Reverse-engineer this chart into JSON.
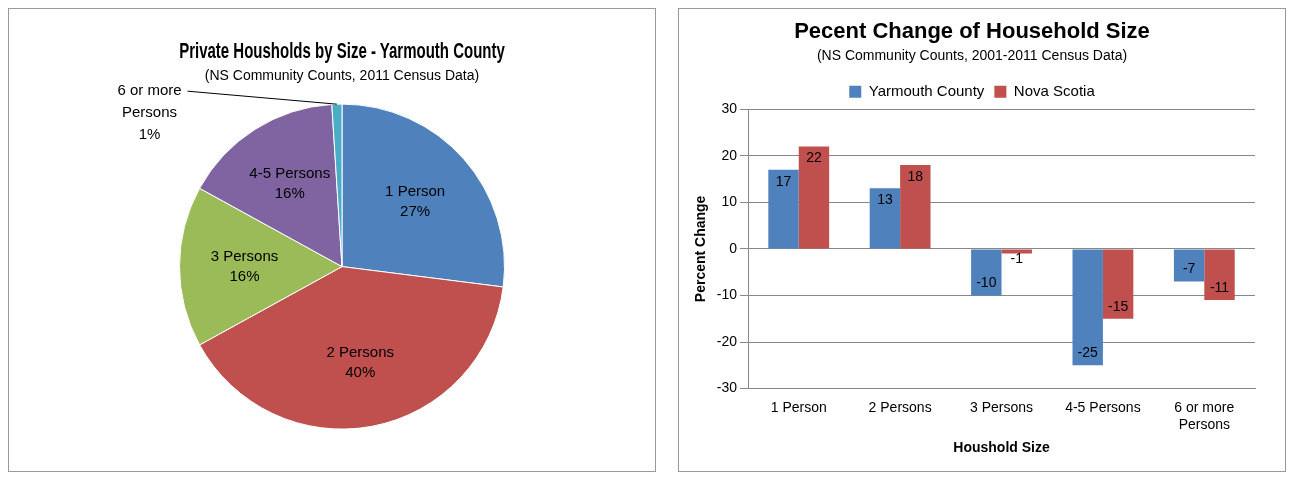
{
  "chart_data": [
    {
      "type": "pie",
      "title": "Private Housholds by Size - Yarmouth County",
      "subtitle": "(NS Community Counts, 2011 Census Data)",
      "categories": [
        "1 Person",
        "2 Persons",
        "3 Persons",
        "4-5 Persons",
        "6 or more Persons"
      ],
      "values": [
        27,
        40,
        16,
        16,
        1
      ],
      "value_labels": [
        "27%",
        "40%",
        "16%",
        "16%",
        "1%"
      ],
      "colors": [
        "#4f81bd",
        "#c0504d",
        "#9bbb59",
        "#8064a2",
        "#4bacc6"
      ],
      "legend": false
    },
    {
      "type": "bar",
      "title": "Pecent Change of Household Size",
      "subtitle": "(NS Community Counts, 2001-2011 Census Data)",
      "xlabel": "Houshold Size",
      "ylabel": "Percent Change",
      "categories": [
        "1 Person",
        "2 Persons",
        "3 Persons",
        "4-5 Persons",
        "6 or more Persons"
      ],
      "series": [
        {
          "name": "Yarmouth County",
          "color": "#4f81bd",
          "values": [
            17,
            13,
            -10,
            -25,
            -7
          ]
        },
        {
          "name": "Nova Scotia",
          "color": "#c0504d",
          "values": [
            22,
            18,
            -1,
            -15,
            -11
          ]
        }
      ],
      "ylim": [
        -30,
        30
      ],
      "yticks": [
        -30,
        -20,
        -10,
        0,
        10,
        20,
        30
      ],
      "grid": "y",
      "legend": "top",
      "data_labels": true
    }
  ]
}
